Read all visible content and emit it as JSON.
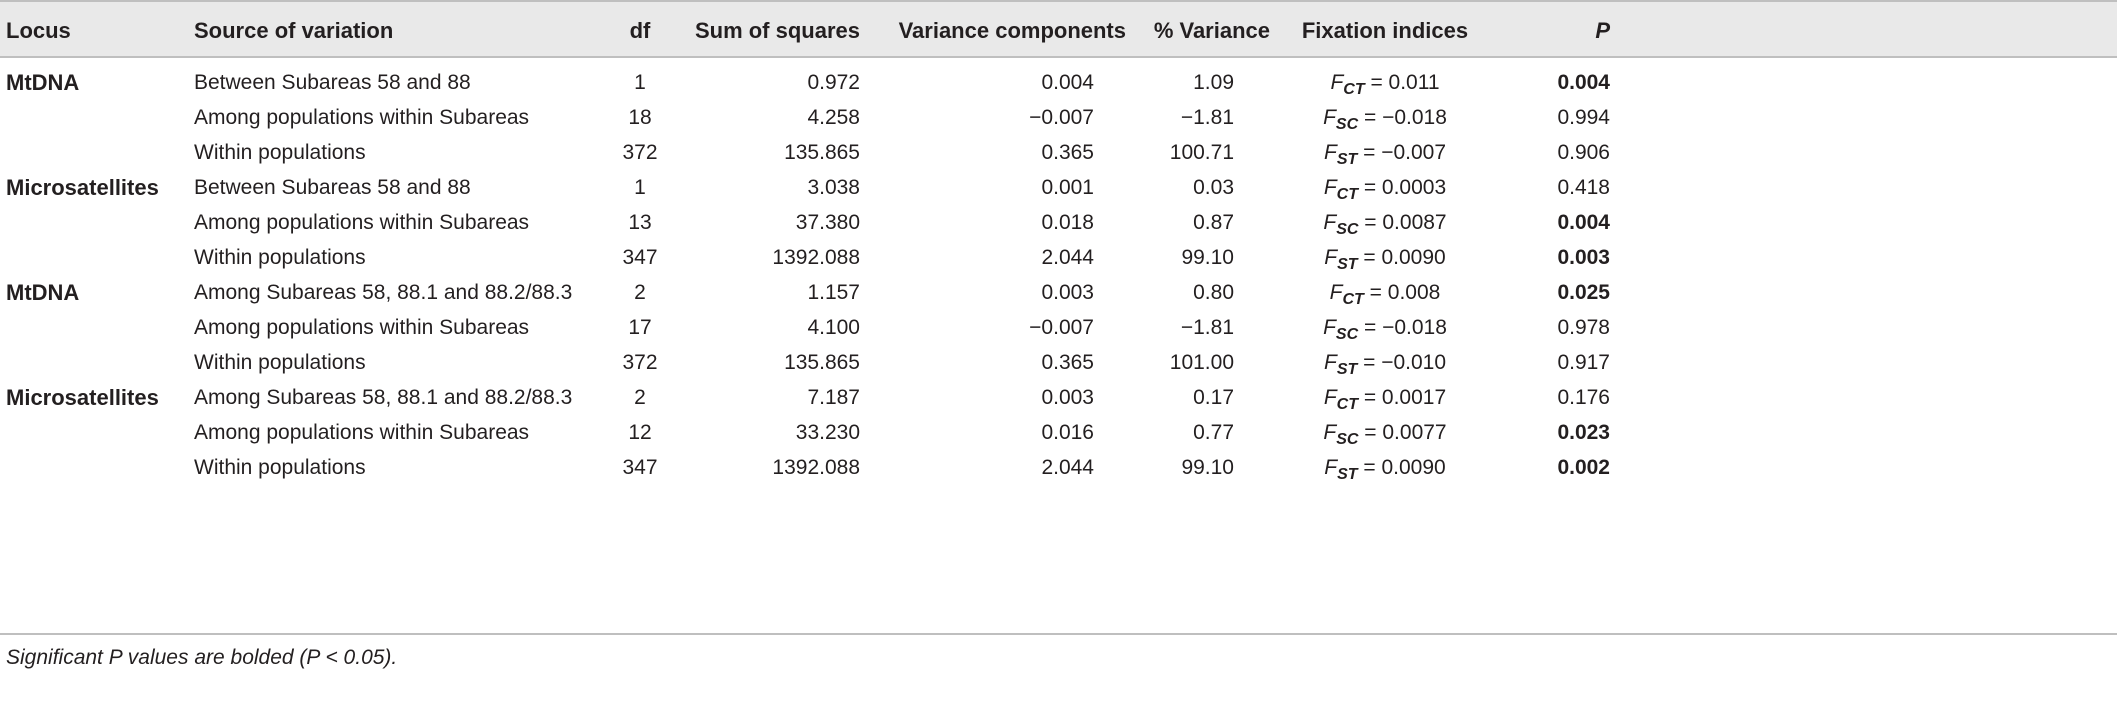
{
  "columns": {
    "locus": "Locus",
    "source": "Source of variation",
    "df": "df",
    "sum_squares": "Sum of squares",
    "variance_components": "Variance components",
    "pct_variance": "% Variance",
    "fixation": "Fixation indices",
    "p": "P"
  },
  "rows": [
    {
      "locus": "MtDNA",
      "source": "Between Subareas 58 and 88",
      "df": "1",
      "ss": "0.972",
      "vc": "0.004",
      "pv": "1.09",
      "f_sym": "F",
      "f_sub": "CT",
      "f_val": " = 0.011",
      "p": "0.004",
      "p_bold": true
    },
    {
      "locus": "",
      "source": "Among populations within Subareas",
      "df": "18",
      "ss": "4.258",
      "vc": "−0.007",
      "pv": "−1.81",
      "f_sym": "F",
      "f_sub": "SC",
      "f_val": " = −0.018",
      "p": "0.994",
      "p_bold": false
    },
    {
      "locus": "",
      "source": "Within populations",
      "df": "372",
      "ss": "135.865",
      "vc": "0.365",
      "pv": "100.71",
      "f_sym": "F",
      "f_sub": "ST",
      "f_val": " = −0.007",
      "p": "0.906",
      "p_bold": false
    },
    {
      "locus": "Microsatellites",
      "source": "Between Subareas 58 and 88",
      "df": "1",
      "ss": "3.038",
      "vc": "0.001",
      "pv": "0.03",
      "f_sym": "F",
      "f_sub": "CT",
      "f_val": " = 0.0003",
      "p": "0.418",
      "p_bold": false
    },
    {
      "locus": "",
      "source": "Among populations within Subareas",
      "df": "13",
      "ss": "37.380",
      "vc": "0.018",
      "pv": "0.87",
      "f_sym": "F",
      "f_sub": "SC",
      "f_val": " = 0.0087",
      "p": "0.004",
      "p_bold": true
    },
    {
      "locus": "",
      "source": "Within populations",
      "df": "347",
      "ss": "1392.088",
      "vc": "2.044",
      "pv": "99.10",
      "f_sym": "F",
      "f_sub": "ST",
      "f_val": " = 0.0090",
      "p": "0.003",
      "p_bold": true
    },
    {
      "locus": "MtDNA",
      "source": "Among Subareas 58, 88.1 and 88.2/88.3",
      "df": "2",
      "ss": "1.157",
      "vc": "0.003",
      "pv": "0.80",
      "f_sym": "F",
      "f_sub": "CT",
      "f_val": " = 0.008",
      "p": "0.025",
      "p_bold": true
    },
    {
      "locus": "",
      "source": "Among populations within Subareas",
      "df": "17",
      "ss": "4.100",
      "vc": "−0.007",
      "pv": "−1.81",
      "f_sym": "F",
      "f_sub": "SC",
      "f_val": " = −0.018",
      "p": "0.978",
      "p_bold": false
    },
    {
      "locus": "",
      "source": "Within populations",
      "df": "372",
      "ss": "135.865",
      "vc": "0.365",
      "pv": "101.00",
      "f_sym": "F",
      "f_sub": "ST",
      "f_val": " = −0.010",
      "p": "0.917",
      "p_bold": false
    },
    {
      "locus": "Microsatellites",
      "source": "Among Subareas 58, 88.1 and 88.2/88.3",
      "df": "2",
      "ss": "7.187",
      "vc": "0.003",
      "pv": "0.17",
      "f_sym": "F",
      "f_sub": "CT",
      "f_val": " = 0.0017",
      "p": "0.176",
      "p_bold": false
    },
    {
      "locus": "",
      "source": "Among populations within Subareas",
      "df": "12",
      "ss": "33.230",
      "vc": "0.016",
      "pv": "0.77",
      "f_sym": "F",
      "f_sub": "SC",
      "f_val": " = 0.0077",
      "p": "0.023",
      "p_bold": true
    },
    {
      "locus": "",
      "source": "Within populations",
      "df": "347",
      "ss": "1392.088",
      "vc": "2.044",
      "pv": "99.10",
      "f_sym": "F",
      "f_sub": "ST",
      "f_val": " = 0.0090",
      "p": "0.002",
      "p_bold": true
    }
  ],
  "footnote": "Significant P values are bolded (P < 0.05).",
  "colors": {
    "header_bg": "#e9e9e9",
    "rule": "#bfbfbf",
    "text": "#231f20"
  }
}
